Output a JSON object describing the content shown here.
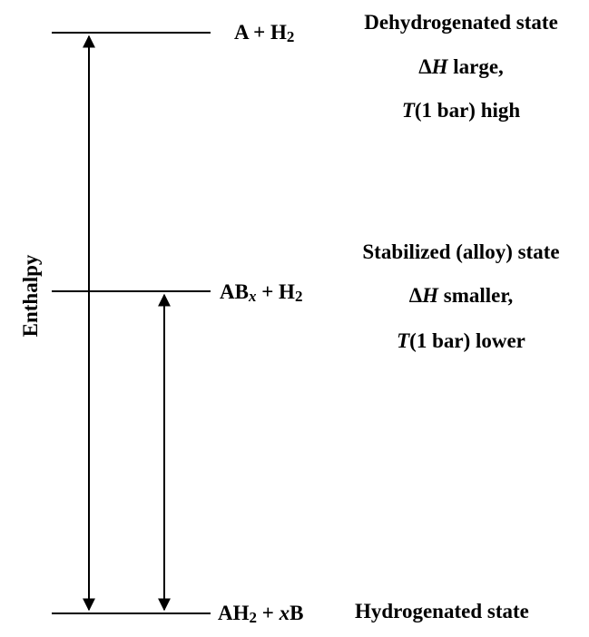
{
  "axis_label": "Enthalpy",
  "levels": {
    "top": {
      "species_main": "A + H",
      "species_sub": "2",
      "state_name": "Dehydrogenated state",
      "dh_symbol": "Δ",
      "dh_var": "H",
      "dh_rest": " large,",
      "t_var": "T",
      "t_rest": "(1 bar) high"
    },
    "middle": {
      "species_main": "AB",
      "species_sub_var": "x",
      "species_tail": " + H",
      "species_sub": "2",
      "state_name": "Stabilized (alloy) state",
      "dh_symbol": "Δ",
      "dh_var": "H",
      "dh_rest": " smaller,",
      "t_var": "T",
      "t_rest": "(1 bar) lower"
    },
    "bottom": {
      "species_main": "AH",
      "species_sub": "2",
      "species_tail": " + ",
      "species_var": "x",
      "species_end": "B",
      "state_name": "Hydrogenated state"
    }
  },
  "colors": {
    "lines": "#000000",
    "text": "#000000",
    "background": "#ffffff"
  }
}
